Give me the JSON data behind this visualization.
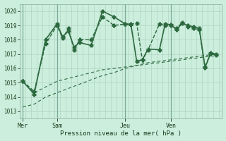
{
  "bg_color": "#cceedd",
  "grid_color": "#aaccbb",
  "line_color": "#2d6a3f",
  "title": "Pression niveau de la mer( hPa )",
  "ylabel_ticks": [
    1013,
    1014,
    1015,
    1016,
    1017,
    1018,
    1019,
    1020
  ],
  "ylim": [
    1012.5,
    1020.5
  ],
  "day_labels": [
    "Mer",
    "Sam",
    "Jeu",
    "Ven"
  ],
  "day_positions": [
    0,
    6,
    18,
    26
  ],
  "xlim": [
    -0.5,
    35
  ],
  "series": [
    {
      "x": [
        0,
        2,
        4,
        6,
        8,
        10,
        12,
        14,
        16,
        18,
        20,
        22,
        24,
        26,
        28,
        30,
        32,
        34
      ],
      "y": [
        1015.1,
        1014.3,
        1014.7,
        1015.1,
        1015.3,
        1015.5,
        1015.7,
        1015.9,
        1016.0,
        1016.1,
        1016.2,
        1016.3,
        1016.4,
        1016.5,
        1016.6,
        1016.7,
        1016.8,
        1016.9
      ],
      "style": "-",
      "marker": null,
      "markersize": 0,
      "linewidth": 0.8,
      "dashes": [
        4,
        2
      ]
    },
    {
      "x": [
        0,
        2,
        4,
        6,
        8,
        10,
        12,
        14,
        16,
        18,
        20,
        22,
        24,
        26,
        28,
        30,
        32,
        34
      ],
      "y": [
        1013.3,
        1013.5,
        1014.0,
        1014.3,
        1014.6,
        1014.9,
        1015.2,
        1015.5,
        1015.7,
        1016.0,
        1016.2,
        1016.4,
        1016.5,
        1016.6,
        1016.7,
        1016.8,
        1016.9,
        1017.0
      ],
      "style": "-",
      "marker": null,
      "markersize": 0,
      "linewidth": 0.8,
      "dashes": [
        4,
        2
      ]
    },
    {
      "x": [
        0,
        2,
        4,
        6,
        7,
        8,
        9,
        10,
        12,
        14,
        16,
        18,
        19,
        20,
        21,
        22,
        24,
        25,
        26,
        27,
        28,
        29,
        30,
        31,
        32,
        33,
        34
      ],
      "y": [
        1015.1,
        1014.4,
        1017.7,
        1019.0,
        1018.1,
        1018.8,
        1017.3,
        1018.0,
        1018.0,
        1019.6,
        1019.0,
        1019.1,
        1019.1,
        1019.15,
        1016.6,
        1017.3,
        1019.1,
        1019.0,
        1019.0,
        1018.8,
        1019.2,
        1018.9,
        1018.8,
        1018.7,
        1016.1,
        1017.1,
        1017.0
      ],
      "style": "--",
      "marker": "P",
      "markersize": 3,
      "linewidth": 1.0,
      "dashes": [
        4,
        2
      ]
    },
    {
      "x": [
        0,
        2,
        4,
        6,
        7,
        8,
        9,
        10,
        12,
        14,
        16,
        18,
        19,
        20,
        21,
        22,
        24,
        25,
        26,
        27,
        28,
        29,
        30,
        31,
        32,
        33,
        34
      ],
      "y": [
        1015.1,
        1014.2,
        1018.0,
        1019.1,
        1018.2,
        1018.6,
        1017.5,
        1017.8,
        1017.6,
        1020.0,
        1019.6,
        1019.1,
        1019.05,
        1016.5,
        1016.6,
        1017.35,
        1017.3,
        1019.1,
        1019.05,
        1018.7,
        1019.15,
        1019.0,
        1018.9,
        1018.8,
        1016.05,
        1017.05,
        1016.95
      ],
      "style": "-",
      "marker": "P",
      "markersize": 3,
      "linewidth": 1.2,
      "dashes": null
    }
  ]
}
